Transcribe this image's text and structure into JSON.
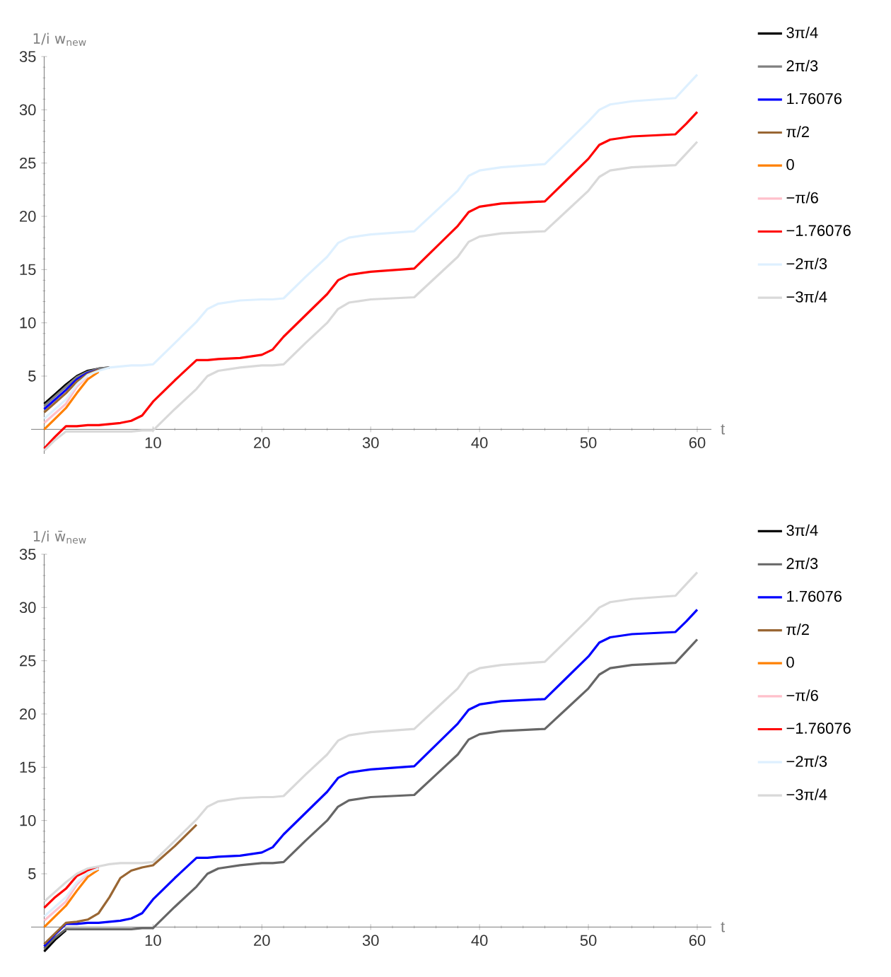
{
  "chart_data": [
    {
      "type": "line",
      "xlabel": "t",
      "ylabel": "1/i w$_{new}$",
      "xlim": [
        -1.2,
        61.3
      ],
      "ylim": [
        -2.3,
        35
      ],
      "xticks": [
        10,
        20,
        30,
        40,
        50,
        60
      ],
      "yticks": [
        5,
        10,
        15,
        20,
        25,
        30,
        35
      ],
      "legend": "right",
      "x": [
        0,
        1,
        2,
        3,
        4,
        5,
        6,
        7,
        8,
        9,
        10,
        12,
        14,
        15,
        16,
        18,
        20,
        21,
        22,
        24,
        26,
        27,
        28,
        30,
        34,
        36,
        38,
        39,
        40,
        42,
        46,
        48,
        50,
        51,
        52,
        54,
        58,
        59,
        60
      ],
      "series": [
        {
          "name": "3π/4",
          "color": "#000000",
          "values": [
            2.4,
            3.3,
            4.2,
            5.0,
            5.5,
            5.7,
            5.8,
            null,
            null,
            null,
            null,
            null,
            null,
            null,
            null,
            null,
            null,
            null,
            null,
            null,
            null,
            null,
            null,
            null,
            null,
            null,
            null,
            null,
            null,
            null,
            null,
            null,
            null,
            null,
            null,
            null,
            null,
            null,
            null
          ]
        },
        {
          "name": "2π/3",
          "color": "#808080",
          "values": [
            2.2,
            3.1,
            4.0,
            4.9,
            5.4,
            5.7,
            5.8,
            null,
            null,
            null,
            null,
            null,
            null,
            null,
            null,
            null,
            null,
            null,
            null,
            null,
            null,
            null,
            null,
            null,
            null,
            null,
            null,
            null,
            null,
            null,
            null,
            null,
            null,
            null,
            null,
            null,
            null,
            null,
            null
          ]
        },
        {
          "name": "1.76076",
          "color": "#0000ff",
          "values": [
            1.9,
            2.8,
            3.7,
            4.7,
            5.3,
            5.6,
            null,
            null,
            null,
            null,
            null,
            null,
            null,
            null,
            null,
            null,
            null,
            null,
            null,
            null,
            null,
            null,
            null,
            null,
            null,
            null,
            null,
            null,
            null,
            null,
            null,
            null,
            null,
            null,
            null,
            null,
            null,
            null,
            null
          ]
        },
        {
          "name": "π/2",
          "color": "#996633",
          "values": [
            1.6,
            2.5,
            3.4,
            4.5,
            5.2,
            5.6,
            null,
            null,
            null,
            null,
            null,
            null,
            null,
            null,
            null,
            null,
            null,
            null,
            null,
            null,
            null,
            null,
            null,
            null,
            null,
            null,
            null,
            null,
            null,
            null,
            null,
            null,
            null,
            null,
            null,
            null,
            null,
            null,
            null
          ]
        },
        {
          "name": "0",
          "color": "#ff8000",
          "values": [
            0.0,
            1.0,
            2.0,
            3.4,
            4.7,
            5.4,
            null,
            null,
            null,
            null,
            null,
            null,
            null,
            null,
            null,
            null,
            null,
            null,
            null,
            null,
            null,
            null,
            null,
            null,
            null,
            null,
            null,
            null,
            null,
            null,
            null,
            null,
            null,
            null,
            null,
            null,
            null,
            null,
            null
          ]
        },
        {
          "name": "−π/6",
          "color": "#ffc0cb",
          "values": [
            0.6,
            1.5,
            2.4,
            4.0,
            5.0,
            null,
            null,
            null,
            null,
            null,
            null,
            null,
            null,
            null,
            null,
            null,
            null,
            null,
            null,
            null,
            null,
            null,
            null,
            null,
            null,
            null,
            null,
            null,
            null,
            null,
            null,
            null,
            null,
            null,
            null,
            null,
            null,
            null,
            null
          ]
        },
        {
          "name": "−1.76076",
          "color": "#ff0000",
          "values": [
            -1.8,
            -0.7,
            0.3,
            0.3,
            0.4,
            0.4,
            0.5,
            0.6,
            0.8,
            1.3,
            2.6,
            4.6,
            6.5,
            6.5,
            6.6,
            6.7,
            7.0,
            7.5,
            8.7,
            10.7,
            12.7,
            14.0,
            14.5,
            14.8,
            15.1,
            17.1,
            19.1,
            20.4,
            20.9,
            21.2,
            21.4,
            23.4,
            25.4,
            26.7,
            27.2,
            27.5,
            27.7,
            28.7,
            29.8
          ]
        },
        {
          "name": "−2π/3",
          "color": "#def0ff",
          "values": [
            1.0,
            1.9,
            2.8,
            4.2,
            5.1,
            5.5,
            5.8,
            5.9,
            6.0,
            6.0,
            6.1,
            8.1,
            10.1,
            11.3,
            11.8,
            12.1,
            12.2,
            12.2,
            12.3,
            14.3,
            16.2,
            17.5,
            18.0,
            18.3,
            18.6,
            20.5,
            22.4,
            23.8,
            24.3,
            24.6,
            24.9,
            26.9,
            28.9,
            30.0,
            30.5,
            30.8,
            31.1,
            32.2,
            33.3
          ]
        },
        {
          "name": "−3π/4",
          "color": "#d9d9d9",
          "values": [
            -2.0,
            -1.0,
            -0.2,
            -0.2,
            -0.2,
            -0.2,
            -0.2,
            -0.2,
            -0.2,
            -0.1,
            -0.1,
            1.9,
            3.8,
            5.0,
            5.5,
            5.8,
            6.0,
            6.0,
            6.1,
            8.1,
            10.0,
            11.3,
            11.9,
            12.2,
            12.4,
            14.3,
            16.2,
            17.6,
            18.1,
            18.4,
            18.6,
            20.5,
            22.4,
            23.7,
            24.3,
            24.6,
            24.8,
            25.9,
            27.0
          ]
        }
      ]
    },
    {
      "type": "line",
      "xlabel": "t",
      "ylabel": "1/i w̄$_{new}$",
      "xlim": [
        -1.2,
        61.3
      ],
      "ylim": [
        -2.3,
        35
      ],
      "xticks": [
        10,
        20,
        30,
        40,
        50,
        60
      ],
      "yticks": [
        5,
        10,
        15,
        20,
        25,
        30,
        35
      ],
      "legend": "right",
      "x": [
        0,
        1,
        2,
        3,
        4,
        5,
        6,
        7,
        8,
        9,
        10,
        12,
        14,
        15,
        16,
        18,
        20,
        21,
        22,
        24,
        26,
        27,
        28,
        30,
        34,
        36,
        38,
        39,
        40,
        42,
        46,
        48,
        50,
        51,
        52,
        54,
        58,
        59,
        60
      ],
      "series": [
        {
          "name": "3π/4",
          "color": "#000000",
          "values": [
            -2.3,
            -1.2,
            -0.3,
            null,
            null,
            null,
            null,
            null,
            null,
            null,
            null,
            null,
            null,
            null,
            null,
            null,
            null,
            null,
            null,
            null,
            null,
            null,
            null,
            null,
            null,
            null,
            null,
            null,
            null,
            null,
            null,
            null,
            null,
            null,
            null,
            null,
            null,
            null,
            null
          ]
        },
        {
          "name": "2π/3",
          "color": "#666666",
          "values": [
            -2.0,
            -1.0,
            -0.2,
            -0.2,
            -0.2,
            -0.2,
            -0.2,
            -0.2,
            -0.2,
            -0.1,
            -0.1,
            1.9,
            3.8,
            5.0,
            5.5,
            5.8,
            6.0,
            6.0,
            6.1,
            8.1,
            10.0,
            11.3,
            11.9,
            12.2,
            12.4,
            14.3,
            16.2,
            17.6,
            18.1,
            18.4,
            18.6,
            20.5,
            22.4,
            23.7,
            24.3,
            24.6,
            24.8,
            25.9,
            27.0
          ]
        },
        {
          "name": "1.76076",
          "color": "#0000ff",
          "values": [
            -1.8,
            -0.7,
            0.3,
            0.3,
            0.4,
            0.4,
            0.5,
            0.6,
            0.8,
            1.3,
            2.6,
            4.6,
            6.5,
            6.5,
            6.6,
            6.7,
            7.0,
            7.5,
            8.7,
            10.7,
            12.7,
            14.0,
            14.5,
            14.8,
            15.1,
            17.1,
            19.1,
            20.4,
            20.9,
            21.2,
            21.4,
            23.4,
            25.4,
            26.7,
            27.2,
            27.5,
            27.7,
            28.7,
            29.8
          ]
        },
        {
          "name": "π/2",
          "color": "#996633",
          "values": [
            -1.6,
            -0.6,
            0.4,
            0.5,
            0.7,
            1.3,
            2.8,
            4.6,
            5.3,
            5.6,
            5.8,
            7.6,
            9.6,
            null,
            null,
            null,
            null,
            null,
            null,
            null,
            null,
            null,
            null,
            null,
            null,
            null,
            null,
            null,
            null,
            null,
            null,
            null,
            null,
            null,
            null,
            null,
            null,
            null,
            null
          ]
        },
        {
          "name": "0",
          "color": "#ff8000",
          "values": [
            0.0,
            1.0,
            2.0,
            3.4,
            4.7,
            5.4,
            null,
            null,
            null,
            null,
            null,
            null,
            null,
            null,
            null,
            null,
            null,
            null,
            null,
            null,
            null,
            null,
            null,
            null,
            null,
            null,
            null,
            null,
            null,
            null,
            null,
            null,
            null,
            null,
            null,
            null,
            null,
            null,
            null
          ]
        },
        {
          "name": "−π/6",
          "color": "#ffc0cb",
          "values": [
            0.6,
            1.5,
            2.4,
            4.0,
            5.0,
            null,
            null,
            null,
            null,
            null,
            null,
            null,
            null,
            null,
            null,
            null,
            null,
            null,
            null,
            null,
            null,
            null,
            null,
            null,
            null,
            null,
            null,
            null,
            null,
            null,
            null,
            null,
            null,
            null,
            null,
            null,
            null,
            null,
            null
          ]
        },
        {
          "name": "−1.76076",
          "color": "#ff0000",
          "values": [
            1.8,
            2.8,
            3.6,
            4.8,
            5.3,
            5.6,
            null,
            null,
            null,
            null,
            null,
            null,
            null,
            null,
            null,
            null,
            null,
            null,
            null,
            null,
            null,
            null,
            null,
            null,
            null,
            null,
            null,
            null,
            null,
            null,
            null,
            null,
            null,
            null,
            null,
            null,
            null,
            null,
            null
          ]
        },
        {
          "name": "−2π/3",
          "color": "#def0ff",
          "values": [
            1.0,
            1.9,
            2.8,
            4.2,
            5.1,
            5.5,
            null,
            null,
            null,
            null,
            null,
            null,
            null,
            null,
            null,
            null,
            null,
            null,
            null,
            null,
            null,
            null,
            null,
            null,
            null,
            null,
            null,
            null,
            null,
            null,
            null,
            null,
            null,
            null,
            null,
            null,
            null,
            null,
            null
          ]
        },
        {
          "name": "−3π/4",
          "color": "#d9d9d9",
          "values": [
            2.4,
            3.3,
            4.2,
            5.0,
            5.5,
            5.7,
            5.9,
            6.0,
            6.0,
            6.0,
            6.1,
            8.1,
            10.1,
            11.3,
            11.8,
            12.1,
            12.2,
            12.2,
            12.3,
            14.3,
            16.2,
            17.5,
            18.0,
            18.3,
            18.6,
            20.5,
            22.4,
            23.8,
            24.3,
            24.6,
            24.9,
            26.9,
            28.9,
            30.0,
            30.5,
            30.8,
            31.1,
            32.2,
            33.3
          ]
        }
      ]
    }
  ]
}
